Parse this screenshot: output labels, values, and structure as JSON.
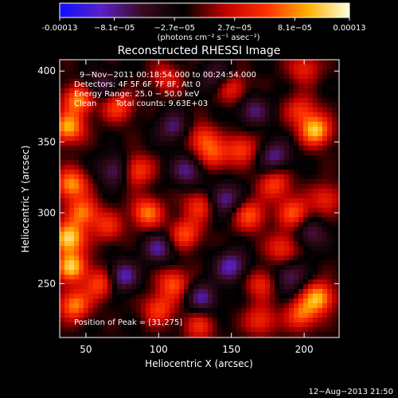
{
  "colorbar": {
    "tick_labels": [
      "-0.00013",
      "−8.1e−05",
      "−2.7e−05",
      "2.7e−05",
      "8.1e−05",
      "0.00013"
    ],
    "tick_values": [
      -0.00013,
      -8.1e-05,
      -2.7e-05,
      2.7e-05,
      8.1e-05,
      0.00013
    ],
    "range": [
      -0.00013,
      0.00013
    ],
    "unit_label": "(photons cm⁻² s⁻¹ asec⁻²)",
    "colors": [
      "#1010ff",
      "#5a20c8",
      "#3a0a20",
      "#000000",
      "#c00000",
      "#ff3000",
      "#ffb000",
      "#ffffe0"
    ]
  },
  "chart_data": {
    "type": "heatmap",
    "title": "Reconstructed RHESSI Image",
    "xlabel": "Heliocentric X (arcsec)",
    "ylabel": "Heliocentric Y (arcsec)",
    "xlim": [
      32,
      224
    ],
    "ylim": [
      212,
      408
    ],
    "x_ticks": [
      50,
      100,
      150,
      200
    ],
    "y_ticks": [
      250,
      300,
      350,
      400
    ],
    "annotations": {
      "time_range": "9−Nov−2011 00:18:54.000 to 00:24:54.000",
      "detectors": "Detectors: 4F 5F 6F 7F 8F, Att 0",
      "energy": "Energy Range: 25.0 − 50.0 keV",
      "clean": "Clean",
      "total_counts": "Total counts: 9.63E+03",
      "peak": "Position of Peak = [31,275]"
    },
    "hotspots": [
      {
        "x": 38,
        "y": 282,
        "v": 1.0
      },
      {
        "x": 40,
        "y": 262,
        "v": 0.9
      },
      {
        "x": 38,
        "y": 360,
        "v": 0.85
      },
      {
        "x": 45,
        "y": 380,
        "v": 0.75
      },
      {
        "x": 40,
        "y": 320,
        "v": 0.8
      },
      {
        "x": 48,
        "y": 300,
        "v": 0.7
      },
      {
        "x": 42,
        "y": 235,
        "v": 0.75
      },
      {
        "x": 60,
        "y": 250,
        "v": 0.6
      },
      {
        "x": 72,
        "y": 375,
        "v": 0.55
      },
      {
        "x": 85,
        "y": 330,
        "v": 0.6
      },
      {
        "x": 92,
        "y": 300,
        "v": 0.7
      },
      {
        "x": 100,
        "y": 232,
        "v": 0.55
      },
      {
        "x": 110,
        "y": 250,
        "v": 0.6
      },
      {
        "x": 118,
        "y": 285,
        "v": 0.6
      },
      {
        "x": 128,
        "y": 305,
        "v": 0.5
      },
      {
        "x": 130,
        "y": 352,
        "v": 0.55
      },
      {
        "x": 138,
        "y": 340,
        "v": 0.5
      },
      {
        "x": 150,
        "y": 388,
        "v": 0.5
      },
      {
        "x": 157,
        "y": 345,
        "v": 0.55
      },
      {
        "x": 163,
        "y": 298,
        "v": 0.6
      },
      {
        "x": 170,
        "y": 250,
        "v": 0.45
      },
      {
        "x": 180,
        "y": 320,
        "v": 0.55
      },
      {
        "x": 185,
        "y": 275,
        "v": 0.5
      },
      {
        "x": 193,
        "y": 300,
        "v": 0.6
      },
      {
        "x": 198,
        "y": 372,
        "v": 0.5
      },
      {
        "x": 208,
        "y": 358,
        "v": 0.9
      },
      {
        "x": 210,
        "y": 240,
        "v": 0.85
      },
      {
        "x": 198,
        "y": 228,
        "v": 0.65
      },
      {
        "x": 200,
        "y": 402,
        "v": 0.45
      },
      {
        "x": 170,
        "y": 224,
        "v": 0.5
      },
      {
        "x": 215,
        "y": 310,
        "v": 0.45
      },
      {
        "x": 105,
        "y": 395,
        "v": 0.4
      },
      {
        "x": 128,
        "y": 220,
        "v": 0.45
      },
      {
        "x": 65,
        "y": 290,
        "v": 0.45
      }
    ],
    "coldspots": [
      {
        "x": 75,
        "y": 255,
        "v": -0.6
      },
      {
        "x": 120,
        "y": 330,
        "v": -0.5
      },
      {
        "x": 150,
        "y": 262,
        "v": -0.6
      },
      {
        "x": 100,
        "y": 275,
        "v": -0.5
      },
      {
        "x": 180,
        "y": 340,
        "v": -0.5
      },
      {
        "x": 145,
        "y": 310,
        "v": -0.55
      },
      {
        "x": 190,
        "y": 255,
        "v": -0.45
      },
      {
        "x": 110,
        "y": 360,
        "v": -0.45
      },
      {
        "x": 70,
        "y": 330,
        "v": -0.5
      },
      {
        "x": 165,
        "y": 372,
        "v": -0.45
      },
      {
        "x": 130,
        "y": 240,
        "v": -0.5
      },
      {
        "x": 205,
        "y": 285,
        "v": -0.4
      },
      {
        "x": 60,
        "y": 390,
        "v": -0.4
      },
      {
        "x": 140,
        "y": 395,
        "v": -0.4
      }
    ]
  },
  "footer": {
    "timestamp": "12−Aug−2013 21:50"
  }
}
